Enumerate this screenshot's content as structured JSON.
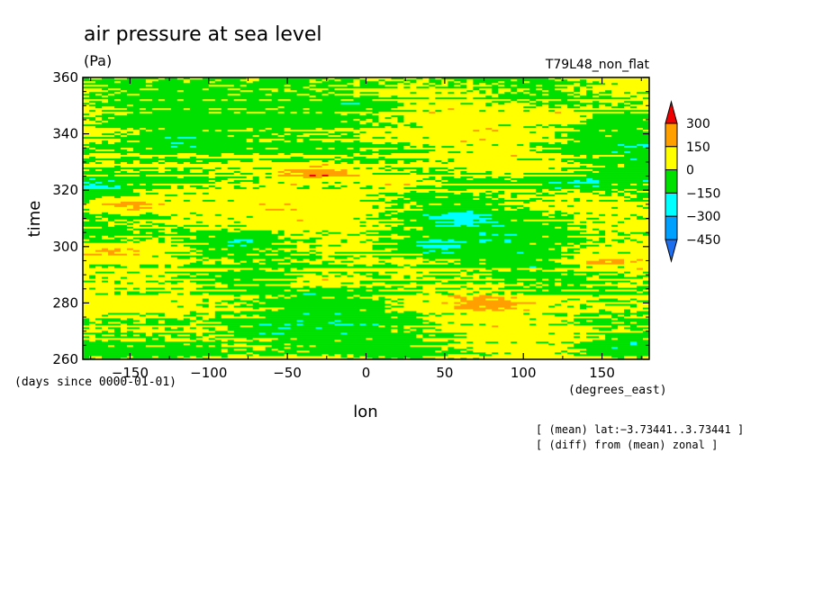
{
  "chart_data": {
    "type": "heatmap",
    "title": "air pressure at sea level",
    "units": "(Pa)",
    "run_label": "T79L48_non_flat",
    "xlabel": "lon",
    "ylabel": "time",
    "x_units": "(degrees_east)",
    "y_units": "(days since 0000-01-01)",
    "xlim": [
      -180,
      180
    ],
    "ylim": [
      260,
      360
    ],
    "x_ticks": [
      -150,
      -100,
      -50,
      0,
      50,
      100,
      150
    ],
    "x_tick_labels": [
      "−150",
      "−100",
      "−50",
      "0",
      "50",
      "100",
      "150"
    ],
    "y_ticks": [
      260,
      280,
      300,
      320,
      340,
      360
    ],
    "y_tick_labels": [
      "260",
      "280",
      "300",
      "320",
      "340",
      "360"
    ],
    "notes": [
      "[ (mean) lat:−3.73441..3.73441 ]",
      "[ (diff) from (mean) zonal ]"
    ],
    "colorbar": {
      "levels": [
        -450,
        -300,
        -150,
        0,
        150,
        300
      ],
      "level_labels": [
        "−450",
        "−300",
        "−150",
        "0",
        "150",
        "300"
      ],
      "colors": [
        "#1e6ef0",
        "#00a0ff",
        "#00ffff",
        "#00e000",
        "#ffff00",
        "#ffa000",
        "#f00000"
      ],
      "extend": "both"
    },
    "features": [
      {
        "lon": -30,
        "time": 326,
        "value": 300
      },
      {
        "lon": -150,
        "time": 315,
        "value": 200
      },
      {
        "lon": 20,
        "time": 323,
        "value": 200
      },
      {
        "lon": 120,
        "time": 346,
        "value": 200
      },
      {
        "lon": 80,
        "time": 280,
        "value": 200
      },
      {
        "lon": -30,
        "time": 288,
        "value": 200
      },
      {
        "lon": -160,
        "time": 298,
        "value": 200
      },
      {
        "lon": 150,
        "time": 295,
        "value": 200
      },
      {
        "lon": -175,
        "time": 321,
        "value": -200
      },
      {
        "lon": 130,
        "time": 322,
        "value": -200
      },
      {
        "lon": -80,
        "time": 302,
        "value": -200
      },
      {
        "lon": 40,
        "time": 300,
        "value": -200
      },
      {
        "lon": 60,
        "time": 310,
        "value": -200
      },
      {
        "lon": -120,
        "time": 338,
        "value": -150
      },
      {
        "lon": 0,
        "time": 350,
        "value": -150
      },
      {
        "lon": -60,
        "time": 270,
        "value": -150
      },
      {
        "lon": 160,
        "time": 265,
        "value": -150
      }
    ]
  }
}
